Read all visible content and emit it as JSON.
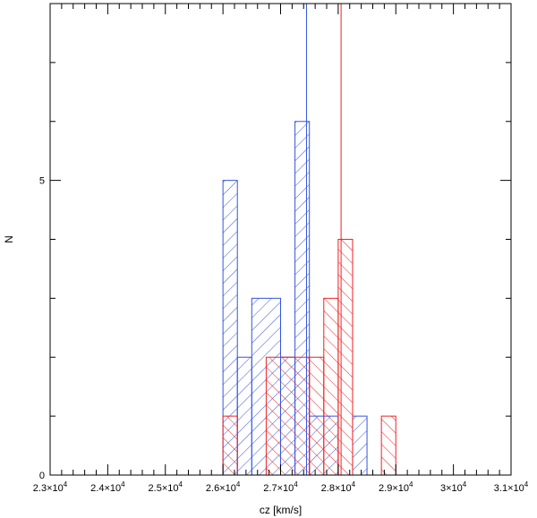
{
  "chart_data": {
    "type": "histogram",
    "title": "",
    "xlabel": "cz [km/s]",
    "ylabel": "N",
    "xlim": [
      23000,
      31000
    ],
    "ylim": [
      0,
      8
    ],
    "x_ticks": [
      {
        "value": 23000,
        "mant": "2.3×10",
        "exp": "4"
      },
      {
        "value": 24000,
        "mant": "2.4×10",
        "exp": "4"
      },
      {
        "value": 25000,
        "mant": "2.5×10",
        "exp": "4"
      },
      {
        "value": 26000,
        "mant": "2.6×10",
        "exp": "4"
      },
      {
        "value": 27000,
        "mant": "2.7×10",
        "exp": "4"
      },
      {
        "value": 28000,
        "mant": "2.8×10",
        "exp": "4"
      },
      {
        "value": 29000,
        "mant": "2.9×10",
        "exp": "4"
      },
      {
        "value": 30000,
        "mant": "3×10",
        "exp": "4"
      },
      {
        "value": 31000,
        "mant": "3.1×10",
        "exp": "4"
      }
    ],
    "y_ticks": [
      {
        "value": 0,
        "label": "0"
      },
      {
        "value": 5,
        "label": "5"
      }
    ],
    "grid": false,
    "legend": "none",
    "series": [
      {
        "color": "#3355dd",
        "hatch": "diagonal-down",
        "bins": [
          {
            "x0": 26000,
            "x1": 26250,
            "count": 5
          },
          {
            "x0": 26250,
            "x1": 26500,
            "count": 2
          },
          {
            "x0": 26500,
            "x1": 27000,
            "count": 3
          },
          {
            "x0": 27000,
            "x1": 27250,
            "count": 2
          },
          {
            "x0": 27250,
            "x1": 27500,
            "count": 6
          },
          {
            "x0": 27500,
            "x1": 28000,
            "count": 1
          },
          {
            "x0": 28250,
            "x1": 28500,
            "count": 1
          }
        ],
        "marker_x": 27450
      },
      {
        "color": "#ee2222",
        "hatch": "diagonal-up",
        "bins": [
          {
            "x0": 26000,
            "x1": 26250,
            "count": 1
          },
          {
            "x0": 26750,
            "x1": 27500,
            "count": 2
          },
          {
            "x0": 27500,
            "x1": 27750,
            "count": 2
          },
          {
            "x0": 27750,
            "x1": 28000,
            "count": 3
          },
          {
            "x0": 28000,
            "x1": 28250,
            "count": 4
          },
          {
            "x0": 28750,
            "x1": 29000,
            "count": 1
          }
        ],
        "marker_x": 28050
      }
    ]
  }
}
